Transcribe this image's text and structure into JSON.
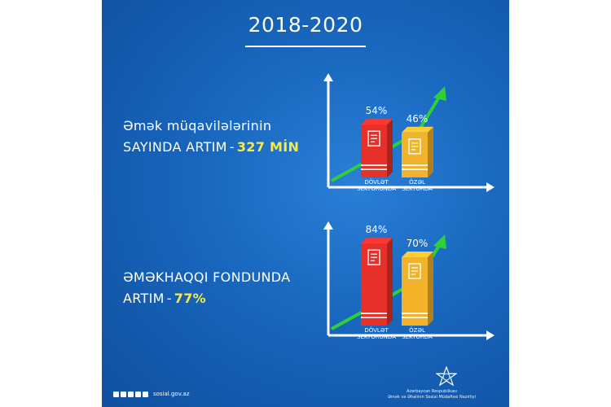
{
  "title": "2018-2020",
  "sections": [
    {
      "line1": "Əmək müqavilələrinin",
      "line2": "SAYINDA ARTIM",
      "dash": "-",
      "highlight": "327 MİN"
    },
    {
      "line1": "ƏMƏKHAQQI FONDUNDA",
      "line2": "ARTIM",
      "dash": "-",
      "highlight": "77%"
    }
  ],
  "chart_data": [
    {
      "type": "bar",
      "categories": [
        "DÖVLƏT SEKTORUNDA",
        "ÖZƏL SEKTORDA"
      ],
      "values": [
        54,
        46
      ],
      "value_labels": [
        "54%",
        "46%"
      ],
      "colors": [
        "#e8302a",
        "#f2b22a"
      ],
      "ylim": [
        0,
        100
      ]
    },
    {
      "type": "bar",
      "categories": [
        "DÖVLƏT SEKTORUNDA",
        "ÖZƏL SEKTORDA"
      ],
      "values": [
        84,
        70
      ],
      "value_labels": [
        "84%",
        "70%"
      ],
      "colors": [
        "#e8302a",
        "#f2b22a"
      ],
      "ylim": [
        0,
        100
      ]
    }
  ],
  "category_lines": [
    [
      "DÖVLƏT",
      "SEKTORUNDA"
    ],
    [
      "ÖZƏL",
      "SEKTORDA"
    ]
  ],
  "footer": {
    "url": "sosial.gov.az",
    "social_icons": [
      "facebook-icon",
      "instagram-icon",
      "youtube-icon",
      "twitter-icon",
      "youtube-icon"
    ],
    "org_line1": "Azərbaycan Respublikası",
    "org_line2": "Əmək və Əhalinin Sosial Müdafiəsi Nazirliyi"
  },
  "colors": {
    "background": "#1866bd",
    "accent_yellow": "#f6e94a",
    "trend_green": "#2fcf3a",
    "public_bar": "#e8302a",
    "private_bar": "#f2b22a"
  }
}
